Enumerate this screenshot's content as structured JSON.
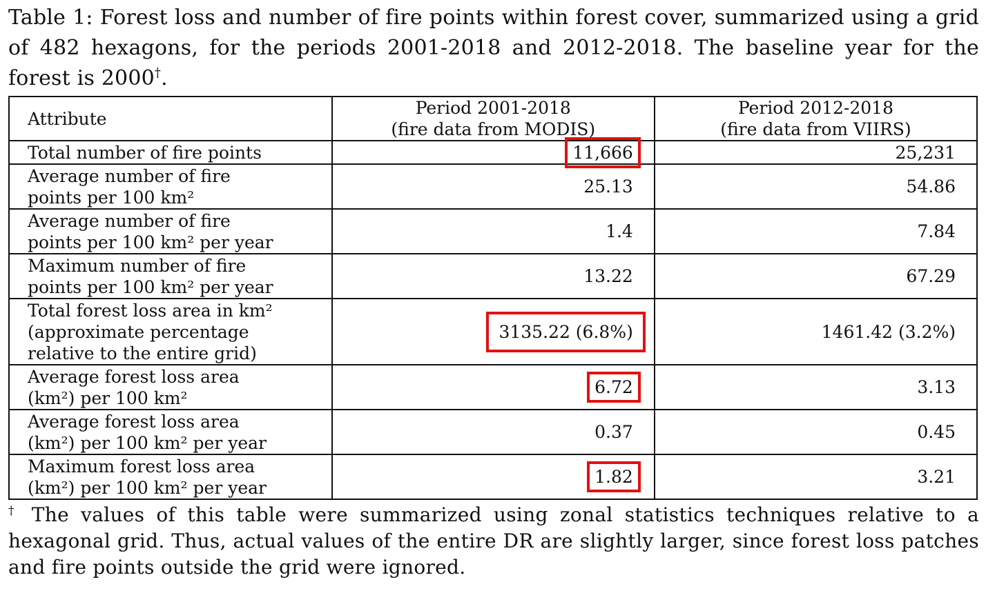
{
  "caption": {
    "text": "Table 1: Forest loss and number of fire points within forest cover, summarized using a grid of 482 hexagons, for the periods 2001-2018 and 2012-2018. The baseline year for the forest is 2000",
    "mark": "†",
    "end": "."
  },
  "header": {
    "attribute": "Attribute",
    "col1_line1": "Period 2001-2018",
    "col1_line2": "(fire data from MODIS)",
    "col2_line1": "Period 2012-2018",
    "col2_line2": "(fire data from VIIRS)"
  },
  "rows": [
    {
      "l1": "Total number of fire points",
      "v1": "11,666",
      "v2": "25,231"
    },
    {
      "l1": "Average number of fire",
      "l2": "points per 100 km²",
      "v1": "25.13",
      "v2": "54.86"
    },
    {
      "l1": "Average number of fire",
      "l2": "points per 100 km² per year",
      "v1": "1.4",
      "v2": "7.84"
    },
    {
      "l1": "Maximum number of fire",
      "l2": "points per 100 km² per year",
      "v1": "13.22",
      "v2": "67.29"
    },
    {
      "l1": "Total forest loss area in km²",
      "l2": "(approximate percentage",
      "l3": "relative to the entire grid)",
      "v1": "3135.22 (6.8%)",
      "v2": "1461.42 (3.2%)"
    },
    {
      "l1": "Average forest loss area",
      "l2": "(km²) per 100 km²",
      "v1": "6.72",
      "v2": "3.13"
    },
    {
      "l1": "Average forest loss area",
      "l2": "(km²) per 100 km² per year",
      "v1": "0.37",
      "v2": "0.45"
    },
    {
      "l1": "Maximum forest loss area",
      "l2": "(km²) per 100 km² per year",
      "v1": "1.82",
      "v2": "3.21"
    }
  ],
  "footnote": {
    "mark": "†",
    "text": " The values of this table were summarized using zonal statistics techniques relative to a hexagonal grid. Thus, actual values of the entire DR are slightly larger, since forest loss patches and fire points outside the grid were ignored."
  },
  "highlight_color": "#e31010"
}
